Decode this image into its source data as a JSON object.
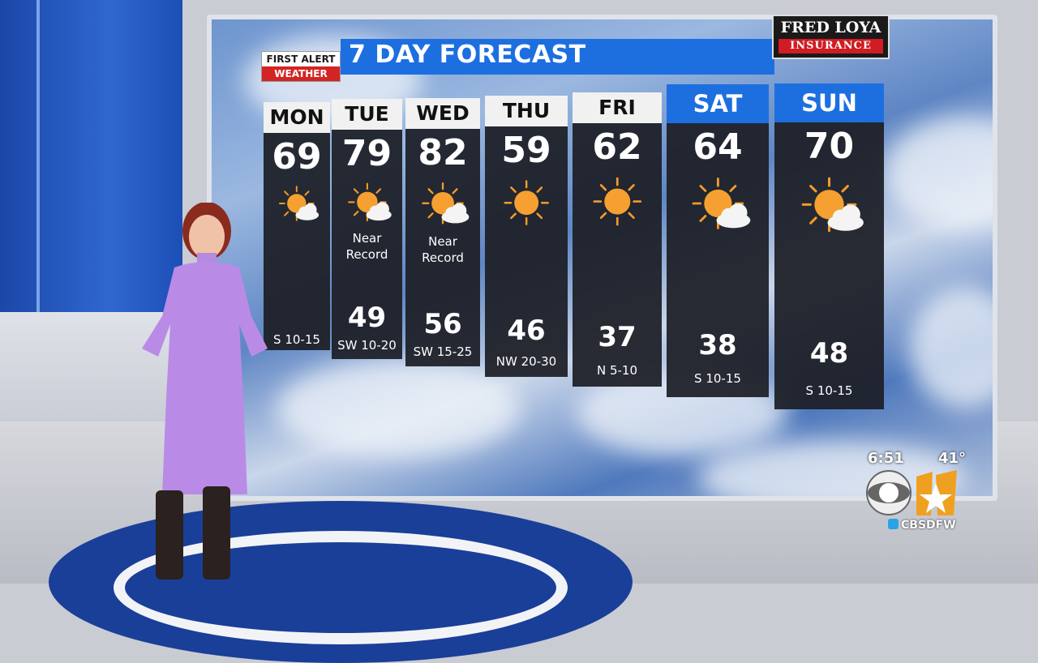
{
  "graphic": {
    "title": "7 DAY FORECAST",
    "badge_top": "FIRST ALERT",
    "badge_bottom": "WEATHER",
    "sponsor_line1": "FRED LOYA",
    "sponsor_line2": "INSURANCE",
    "accent_color": "#1d6fe0"
  },
  "days": [
    {
      "label": "MON",
      "high": "69",
      "icon": "sun-cloud-icon",
      "note": "",
      "low": "",
      "wind": "S 10-15"
    },
    {
      "label": "TUE",
      "high": "79",
      "icon": "sun-cloud-icon",
      "note": "Near Record",
      "low": "49",
      "wind": "SW 10-20"
    },
    {
      "label": "WED",
      "high": "82",
      "icon": "sun-cloud-icon",
      "note": "Near Record",
      "low": "56",
      "wind": "SW 15-25"
    },
    {
      "label": "THU",
      "high": "59",
      "icon": "sun-icon",
      "note": "",
      "low": "46",
      "wind": "NW 20-30"
    },
    {
      "label": "FRI",
      "high": "62",
      "icon": "sun-icon",
      "note": "",
      "low": "37",
      "wind": "N 5-10"
    },
    {
      "label": "SAT",
      "high": "64",
      "icon": "sun-cloud-icon",
      "note": "",
      "low": "38",
      "wind": "S 10-15"
    },
    {
      "label": "SUN",
      "high": "70",
      "icon": "sun-cloud-icon",
      "note": "",
      "low": "48",
      "wind": "S 10-15"
    }
  ],
  "station_bug": {
    "time": "6:51",
    "temperature": "41°",
    "logo": "CBS 11",
    "handle": "CBSDFW"
  }
}
